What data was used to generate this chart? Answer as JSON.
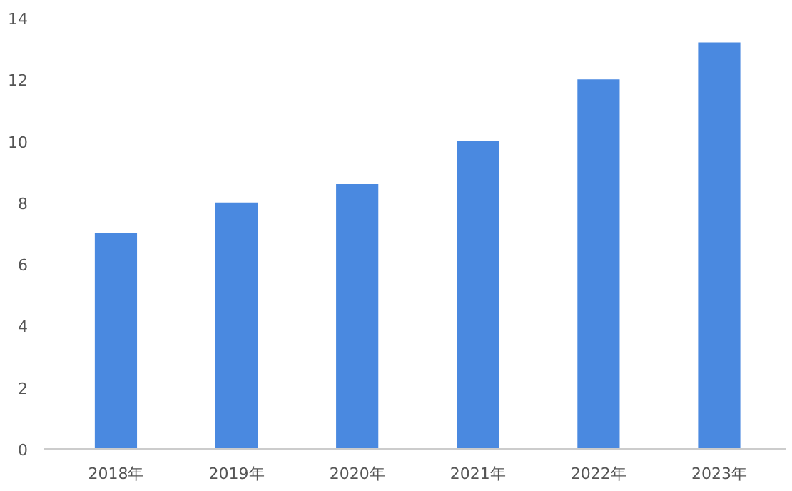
{
  "chart_data": {
    "type": "bar",
    "categories": [
      "2018年",
      "2019年",
      "2020年",
      "2021年",
      "2022年",
      "2023年"
    ],
    "values": [
      7.0,
      8.0,
      8.6,
      10.0,
      12.0,
      13.2
    ],
    "color": "#4a89e0",
    "ylim": [
      0,
      14
    ],
    "yticks": [
      0,
      2,
      4,
      6,
      8,
      10,
      12,
      14
    ],
    "grid": false
  }
}
